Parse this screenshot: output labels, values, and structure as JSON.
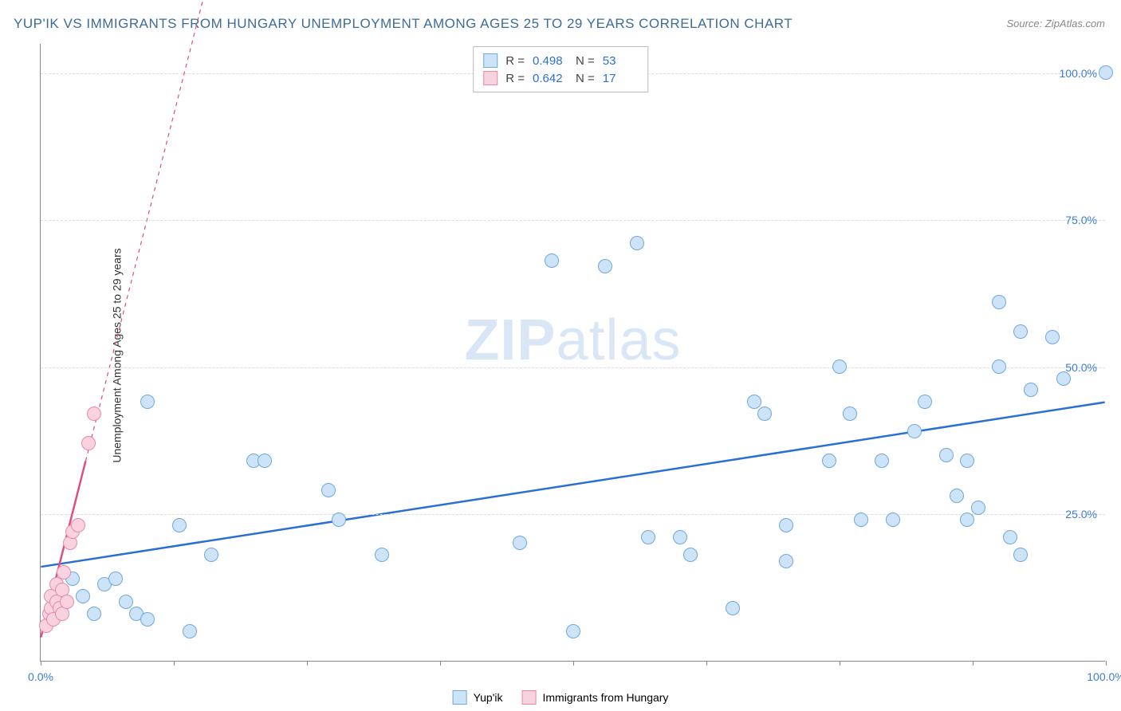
{
  "title": "YUP'IK VS IMMIGRANTS FROM HUNGARY UNEMPLOYMENT AMONG AGES 25 TO 29 YEARS CORRELATION CHART",
  "title_color": "#3d6b99",
  "source": "Source: ZipAtlas.com",
  "source_color": "#888888",
  "ylabel": "Unemployment Among Ages 25 to 29 years",
  "chart": {
    "type": "scatter",
    "xlim": [
      0,
      100
    ],
    "ylim": [
      0,
      105
    ],
    "yticks": [
      25,
      50,
      75,
      100
    ],
    "ytick_labels": [
      "25.0%",
      "50.0%",
      "75.0%",
      "100.0%"
    ],
    "xtick_positions": [
      0,
      12.5,
      25,
      37.5,
      50,
      62.5,
      75,
      87.5,
      100
    ],
    "xtick_labels": {
      "0": "0.0%",
      "100": "100.0%"
    },
    "grid_color": "#dddddd",
    "axis_color": "#888888",
    "background_color": "#ffffff",
    "tick_label_color": "#3d7bd6",
    "point_radius": 9,
    "series": [
      {
        "name": "Yup'ik",
        "fill": "#cde3f7",
        "stroke": "#6fa8dc",
        "trend": {
          "x1": 0,
          "y1": 16,
          "x2": 100,
          "y2": 44,
          "solid_color": "#2a6fd6"
        },
        "R": "0.498",
        "N": "53",
        "points": [
          [
            2,
            10
          ],
          [
            3,
            14
          ],
          [
            4,
            11
          ],
          [
            5,
            8
          ],
          [
            6,
            13
          ],
          [
            7,
            14
          ],
          [
            8,
            10
          ],
          [
            9,
            8
          ],
          [
            10,
            7
          ],
          [
            10,
            44
          ],
          [
            13,
            23
          ],
          [
            14,
            5
          ],
          [
            16,
            18
          ],
          [
            20,
            34
          ],
          [
            21,
            34
          ],
          [
            27,
            29
          ],
          [
            28,
            24
          ],
          [
            32,
            18
          ],
          [
            45,
            20
          ],
          [
            48,
            68
          ],
          [
            50,
            5
          ],
          [
            53,
            67
          ],
          [
            56,
            71
          ],
          [
            57,
            21
          ],
          [
            60,
            21
          ],
          [
            61,
            18
          ],
          [
            65,
            9
          ],
          [
            67,
            44
          ],
          [
            68,
            42
          ],
          [
            70,
            23
          ],
          [
            70,
            17
          ],
          [
            74,
            34
          ],
          [
            75,
            50
          ],
          [
            76,
            42
          ],
          [
            77,
            24
          ],
          [
            79,
            34
          ],
          [
            80,
            24
          ],
          [
            82,
            39
          ],
          [
            83,
            44
          ],
          [
            85,
            35
          ],
          [
            86,
            28
          ],
          [
            87,
            34
          ],
          [
            87,
            24
          ],
          [
            88,
            26
          ],
          [
            90,
            50
          ],
          [
            90,
            61
          ],
          [
            91,
            21
          ],
          [
            92,
            18
          ],
          [
            92,
            56
          ],
          [
            93,
            46
          ],
          [
            95,
            55
          ],
          [
            96,
            48
          ],
          [
            100,
            100
          ]
        ]
      },
      {
        "name": "Immigrants from Hungary",
        "fill": "#f8d2de",
        "stroke": "#e68aaa",
        "trend": {
          "x1": 0,
          "y1": 4,
          "x2": 4.2,
          "y2": 34,
          "solid_color": "#e04c7f",
          "dash_x2": 16,
          "dash_y2": 118
        },
        "R": "0.642",
        "N": "17",
        "points": [
          [
            0.5,
            6
          ],
          [
            0.8,
            8
          ],
          [
            1,
            9
          ],
          [
            1,
            11
          ],
          [
            1.2,
            7
          ],
          [
            1.5,
            10
          ],
          [
            1.5,
            13
          ],
          [
            1.8,
            9
          ],
          [
            2,
            8
          ],
          [
            2,
            12
          ],
          [
            2.2,
            15
          ],
          [
            2.5,
            10
          ],
          [
            2.8,
            20
          ],
          [
            3,
            22
          ],
          [
            3.5,
            23
          ],
          [
            4.5,
            37
          ],
          [
            5,
            42
          ]
        ]
      }
    ]
  },
  "legend_bottom": [
    {
      "label": "Yup'ik",
      "fill": "#cde3f7",
      "stroke": "#6fa8dc"
    },
    {
      "label": "Immigrants from Hungary",
      "fill": "#f8d2de",
      "stroke": "#e68aaa"
    }
  ],
  "stats_value_color": "#2a6fd6",
  "watermark": {
    "text1": "ZIP",
    "text2": "atlas",
    "color": "#d9e6f5"
  }
}
